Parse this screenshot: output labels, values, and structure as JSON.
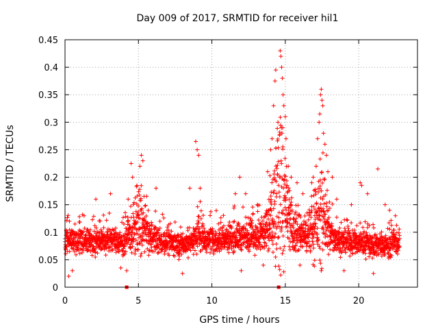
{
  "chart_data": {
    "type": "scatter",
    "title": "Day 009 of 2017, SRMTID for receiver hil1",
    "xlabel": "GPS time / hours",
    "ylabel": "SRMTID / TECUs",
    "xlim": [
      0,
      24
    ],
    "ylim": [
      0,
      0.45
    ],
    "x_ticks": [
      0,
      5,
      10,
      15,
      20
    ],
    "x_tick_labels": [
      "0",
      "5",
      "10",
      "15",
      "20"
    ],
    "y_ticks": [
      0,
      0.05,
      0.1,
      0.15,
      0.2,
      0.25,
      0.3,
      0.35,
      0.4,
      0.45
    ],
    "y_tick_labels": [
      "0",
      "0.05",
      "0.1",
      "0.15",
      "0.2",
      "0.25",
      "0.3",
      "0.35",
      "0.4",
      "0.45"
    ],
    "grid": true,
    "marker": "plus",
    "color": "#ff0000",
    "data_gap_markers_x": [
      4.2,
      14.55
    ],
    "series": [
      {
        "name": "SRMTID",
        "x_range": [
          0,
          22.8
        ],
        "approx_points": 2600,
        "baseline_range": [
          0.03,
          0.14
        ],
        "envelope": [
          [
            0.0,
            0.09
          ],
          [
            0.5,
            0.1
          ],
          [
            1.0,
            0.1
          ],
          [
            2.0,
            0.09
          ],
          [
            3.0,
            0.1
          ],
          [
            4.0,
            0.09
          ],
          [
            4.6,
            0.13
          ],
          [
            5.0,
            0.16
          ],
          [
            5.4,
            0.14
          ],
          [
            6.0,
            0.1
          ],
          [
            7.0,
            0.09
          ],
          [
            8.0,
            0.08
          ],
          [
            8.8,
            0.1
          ],
          [
            9.1,
            0.13
          ],
          [
            9.5,
            0.1
          ],
          [
            10.5,
            0.1
          ],
          [
            11.5,
            0.11
          ],
          [
            12.5,
            0.11
          ],
          [
            13.5,
            0.12
          ],
          [
            14.0,
            0.17
          ],
          [
            14.4,
            0.25
          ],
          [
            14.8,
            0.28
          ],
          [
            15.1,
            0.18
          ],
          [
            15.6,
            0.12
          ],
          [
            16.5,
            0.12
          ],
          [
            17.0,
            0.15
          ],
          [
            17.4,
            0.2
          ],
          [
            17.6,
            0.2
          ],
          [
            18.0,
            0.12
          ],
          [
            19.0,
            0.09
          ],
          [
            20.0,
            0.09
          ],
          [
            21.0,
            0.08
          ],
          [
            22.0,
            0.08
          ],
          [
            22.8,
            0.09
          ]
        ],
        "notable_points": [
          [
            0.3,
            0.12
          ],
          [
            1.3,
            0.13
          ],
          [
            2.1,
            0.16
          ],
          [
            3.1,
            0.17
          ],
          [
            4.3,
            0.16
          ],
          [
            4.5,
            0.225
          ],
          [
            4.6,
            0.2
          ],
          [
            5.2,
            0.24
          ],
          [
            5.3,
            0.23
          ],
          [
            5.1,
            0.22
          ],
          [
            6.2,
            0.18
          ],
          [
            8.5,
            0.18
          ],
          [
            8.9,
            0.265
          ],
          [
            9.0,
            0.25
          ],
          [
            9.1,
            0.24
          ],
          [
            9.2,
            0.18
          ],
          [
            11.6,
            0.17
          ],
          [
            11.9,
            0.2
          ],
          [
            12.3,
            0.17
          ],
          [
            13.1,
            0.15
          ],
          [
            13.8,
            0.21
          ],
          [
            14.0,
            0.25
          ],
          [
            14.1,
            0.27
          ],
          [
            14.2,
            0.33
          ],
          [
            14.3,
            0.375
          ],
          [
            14.35,
            0.395
          ],
          [
            14.5,
            0.3
          ],
          [
            14.6,
            0.2
          ],
          [
            14.65,
            0.43
          ],
          [
            14.7,
            0.42
          ],
          [
            14.75,
            0.4
          ],
          [
            14.8,
            0.38
          ],
          [
            14.85,
            0.35
          ],
          [
            14.9,
            0.33
          ],
          [
            15.0,
            0.31
          ],
          [
            15.05,
            0.27
          ],
          [
            15.2,
            0.22
          ],
          [
            15.4,
            0.2
          ],
          [
            15.8,
            0.19
          ],
          [
            16.2,
            0.17
          ],
          [
            16.8,
            0.19
          ],
          [
            16.9,
            0.2
          ],
          [
            17.1,
            0.22
          ],
          [
            17.2,
            0.27
          ],
          [
            17.3,
            0.3
          ],
          [
            17.35,
            0.315
          ],
          [
            17.4,
            0.35
          ],
          [
            17.45,
            0.36
          ],
          [
            17.5,
            0.34
          ],
          [
            17.55,
            0.33
          ],
          [
            17.6,
            0.28
          ],
          [
            17.7,
            0.26
          ],
          [
            17.8,
            0.24
          ],
          [
            17.9,
            0.21
          ],
          [
            18.2,
            0.2
          ],
          [
            18.5,
            0.16
          ],
          [
            19.5,
            0.15
          ],
          [
            20.1,
            0.19
          ],
          [
            20.2,
            0.185
          ],
          [
            20.6,
            0.17
          ],
          [
            21.3,
            0.215
          ],
          [
            21.8,
            0.15
          ],
          [
            22.1,
            0.14
          ],
          [
            22.5,
            0.13
          ],
          [
            0.25,
            0.02
          ],
          [
            0.5,
            0.03
          ],
          [
            3.8,
            0.035
          ],
          [
            4.2,
            0.03
          ],
          [
            8.0,
            0.025
          ],
          [
            12.0,
            0.03
          ],
          [
            13.5,
            0.04
          ],
          [
            16.0,
            0.04
          ],
          [
            19.0,
            0.03
          ],
          [
            21.0,
            0.025
          ]
        ]
      }
    ]
  }
}
